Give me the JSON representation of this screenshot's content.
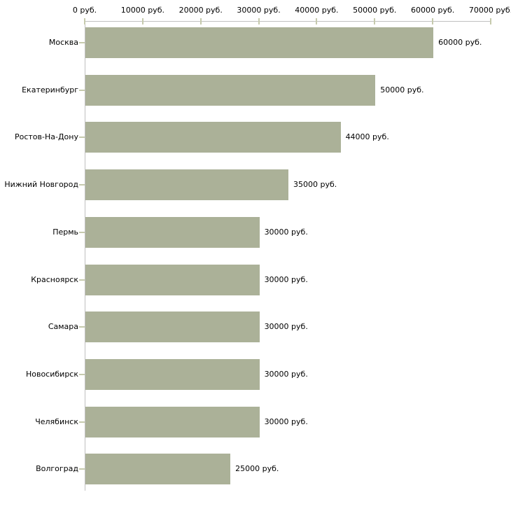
{
  "chart_data": {
    "type": "bar",
    "orientation": "horizontal",
    "title": "",
    "xlabel": "",
    "ylabel": "",
    "unit": "руб.",
    "categories": [
      "Москва",
      "Екатеринбург",
      "Ростов-На-Дону",
      "Нижний Новгород",
      "Пермь",
      "Красноярск",
      "Самара",
      "Новосибирск",
      "Челябинск",
      "Волгоград"
    ],
    "values": [
      60000,
      50000,
      44000,
      35000,
      30000,
      30000,
      30000,
      30000,
      30000,
      25000
    ],
    "value_labels": [
      "60000 руб.",
      "50000 руб.",
      "44000 руб.",
      "35000 руб.",
      "30000 руб.",
      "30000 руб.",
      "30000 руб.",
      "30000 руб.",
      "30000 руб.",
      "25000 руб."
    ],
    "x_tick_values": [
      0,
      10000,
      20000,
      30000,
      40000,
      50000,
      60000,
      70000
    ],
    "x_tick_labels": [
      "0 руб.",
      "10000 руб.",
      "20000 руб.",
      "30000 руб.",
      "40000 руб.",
      "50000 руб.",
      "60000 руб.",
      "70000 руб."
    ],
    "xlim": [
      0,
      70000
    ],
    "grid": false,
    "legend": null,
    "axis_position": "top",
    "colors": {
      "bar": "#abb198",
      "axis_line": "#c0c0c0",
      "tick_mark": "#c6caad",
      "text": "#000000",
      "background": "#ffffff"
    }
  }
}
